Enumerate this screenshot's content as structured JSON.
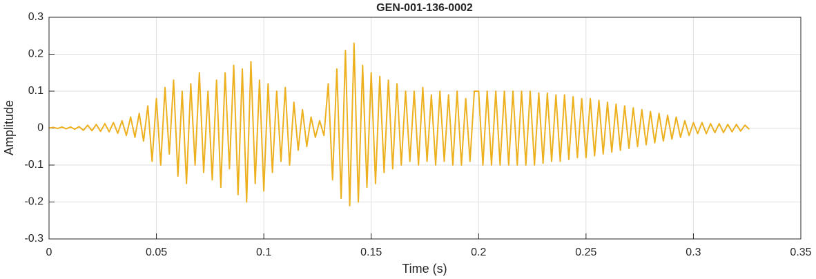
{
  "chart_data": {
    "type": "line",
    "title": "GEN-001-136-0002",
    "xlabel": "Time (s)",
    "ylabel": "Amplitude",
    "color": "#EDB120",
    "grid": true,
    "xlim": [
      0,
      0.35
    ],
    "xticks": [
      0,
      0.05,
      0.1,
      0.15,
      0.2,
      0.25,
      0.3,
      0.35
    ],
    "ylim": [
      -0.3,
      0.3
    ],
    "yticks": [
      -0.3,
      -0.2,
      -0.1,
      0,
      0.1,
      0.2,
      0.3
    ],
    "x": [
      0,
      0.002,
      0.004,
      0.006,
      0.008,
      0.01,
      0.012,
      0.014,
      0.016,
      0.018,
      0.02,
      0.022,
      0.024,
      0.026,
      0.028,
      0.03,
      0.032,
      0.034,
      0.036,
      0.038,
      0.04,
      0.042,
      0.044,
      0.046,
      0.048,
      0.05,
      0.052,
      0.054,
      0.056,
      0.058,
      0.06,
      0.062,
      0.064,
      0.066,
      0.068,
      0.07,
      0.072,
      0.074,
      0.076,
      0.078,
      0.08,
      0.082,
      0.084,
      0.086,
      0.088,
      0.09,
      0.092,
      0.094,
      0.096,
      0.098,
      0.1,
      0.102,
      0.104,
      0.106,
      0.108,
      0.11,
      0.112,
      0.114,
      0.116,
      0.118,
      0.12,
      0.122,
      0.124,
      0.126,
      0.128,
      0.13,
      0.132,
      0.134,
      0.136,
      0.138,
      0.14,
      0.142,
      0.144,
      0.146,
      0.148,
      0.15,
      0.152,
      0.154,
      0.156,
      0.158,
      0.16,
      0.162,
      0.164,
      0.166,
      0.168,
      0.17,
      0.172,
      0.174,
      0.176,
      0.178,
      0.18,
      0.182,
      0.184,
      0.186,
      0.188,
      0.19,
      0.192,
      0.194,
      0.196,
      0.198,
      0.2,
      0.202,
      0.204,
      0.206,
      0.208,
      0.21,
      0.212,
      0.214,
      0.216,
      0.218,
      0.22,
      0.222,
      0.224,
      0.226,
      0.228,
      0.23,
      0.232,
      0.234,
      0.236,
      0.238,
      0.24,
      0.242,
      0.244,
      0.246,
      0.248,
      0.25,
      0.252,
      0.254,
      0.256,
      0.258,
      0.26,
      0.262,
      0.264,
      0.266,
      0.268,
      0.27,
      0.272,
      0.274,
      0.276,
      0.278,
      0.28,
      0.282,
      0.284,
      0.286,
      0.288,
      0.29,
      0.292,
      0.294,
      0.296,
      0.298,
      0.3,
      0.302,
      0.304,
      0.306,
      0.308,
      0.31,
      0.312,
      0.314,
      0.316,
      0.318,
      0.32,
      0.322,
      0.324,
      0.326
    ],
    "values": [
      0,
      0.002,
      -0.001,
      0.003,
      -0.002,
      0.003,
      -0.003,
      0.004,
      -0.006,
      0.008,
      -0.007,
      0.01,
      -0.009,
      0.012,
      -0.01,
      0.015,
      -0.014,
      0.02,
      -0.02,
      0.03,
      -0.025,
      0.04,
      -0.035,
      0.06,
      -0.09,
      0.08,
      -0.1,
      0.11,
      -0.07,
      0.13,
      -0.13,
      0.1,
      -0.15,
      0.12,
      -0.1,
      0.15,
      -0.12,
      0.1,
      -0.14,
      0.13,
      -0.16,
      0.15,
      -0.11,
      0.17,
      -0.18,
      0.16,
      -0.2,
      0.18,
      -0.15,
      0.13,
      -0.17,
      0.12,
      -0.12,
      0.1,
      -0.09,
      0.11,
      -0.1,
      0.07,
      -0.06,
      0.05,
      -0.05,
      0.03,
      -0.025,
      0.02,
      -0.02,
      0.12,
      -0.14,
      0.16,
      -0.19,
      0.21,
      -0.21,
      0.23,
      -0.2,
      0.17,
      -0.16,
      0.15,
      -0.15,
      0.14,
      -0.12,
      0.13,
      -0.11,
      0.12,
      -0.1,
      0.1,
      -0.09,
      0.1,
      -0.1,
      0.11,
      -0.09,
      0.09,
      -0.1,
      0.1,
      -0.09,
      0.09,
      -0.1,
      0.1,
      -0.1,
      0.08,
      -0.09,
      0.1,
      0.1,
      -0.1,
      0.1,
      -0.1,
      0.1,
      -0.1,
      0.1,
      -0.1,
      0.1,
      -0.1,
      0.1,
      -0.1,
      0.1,
      -0.1,
      0.095,
      -0.095,
      0.095,
      -0.09,
      0.09,
      -0.09,
      0.09,
      -0.085,
      0.085,
      -0.08,
      0.08,
      -0.08,
      0.08,
      -0.075,
      0.075,
      -0.07,
      0.07,
      -0.065,
      0.065,
      -0.06,
      0.06,
      -0.055,
      0.055,
      -0.05,
      0.05,
      -0.045,
      0.045,
      -0.04,
      0.04,
      -0.035,
      0.035,
      -0.03,
      0.03,
      -0.025,
      0.02,
      -0.02,
      0.015,
      -0.015,
      0.015,
      -0.015,
      0.012,
      -0.012,
      0.012,
      -0.012,
      0.01,
      -0.01,
      0.01,
      -0.008,
      0.008,
      -0.003
    ]
  }
}
